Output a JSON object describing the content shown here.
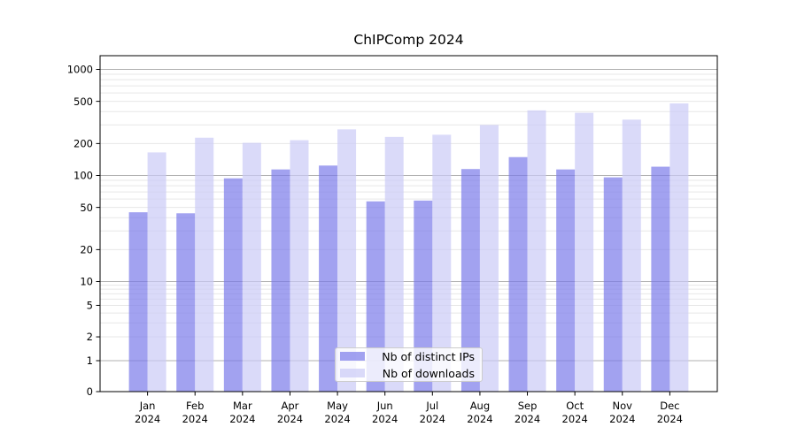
{
  "chart_data": {
    "type": "bar",
    "title": "ChIPComp 2024",
    "categories": [
      "Jan 2024",
      "Feb 2024",
      "Mar 2024",
      "Apr 2024",
      "May 2024",
      "Jun 2024",
      "Jul 2024",
      "Aug 2024",
      "Sep 2024",
      "Oct 2024",
      "Nov 2024",
      "Dec 2024"
    ],
    "series": [
      {
        "name": "Nb of distinct IPs",
        "color": "#7a7ae9",
        "opacity": 0.7,
        "values": [
          45,
          44,
          94,
          114,
          124,
          57,
          58,
          115,
          149,
          114,
          96,
          121
        ]
      },
      {
        "name": "Nb of downloads",
        "color": "#cacaf6",
        "opacity": 0.7,
        "values": [
          165,
          227,
          203,
          215,
          272,
          231,
          242,
          299,
          411,
          390,
          336,
          478
        ]
      }
    ],
    "xlabel": "",
    "ylabel": "",
    "yscale": "log",
    "yticks": [
      0,
      1,
      2,
      5,
      10,
      20,
      50,
      100,
      200,
      500,
      1000
    ],
    "ylim": [
      0,
      1400
    ],
    "grid": true,
    "legend_position": "lower center",
    "axis_color": "#000000",
    "major_grid_color": "#b0b0b0",
    "minor_grid_color": "#e7e7e7",
    "background": "#ffffff"
  }
}
